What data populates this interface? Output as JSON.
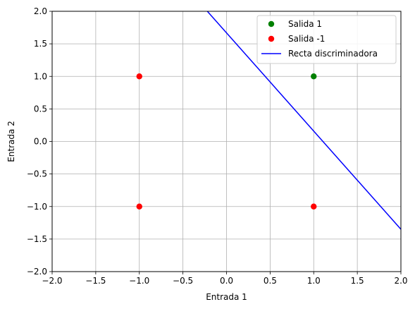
{
  "chart_data": {
    "type": "scatter",
    "xlabel": "Entrada 1",
    "ylabel": "Entrada 2",
    "xlim": [
      -2,
      2
    ],
    "ylim": [
      -2,
      2
    ],
    "xticks": [
      "−2.0",
      "−1.5",
      "−1.0",
      "−0.5",
      "0.0",
      "0.5",
      "1.0",
      "1.5",
      "2.0"
    ],
    "yticks": [
      "−2.0",
      "−1.5",
      "−1.0",
      "−0.5",
      "0.0",
      "0.5",
      "1.0",
      "1.5",
      "2.0"
    ],
    "grid": true,
    "legend_position": "top-right",
    "series": [
      {
        "name": "Salida 1",
        "kind": "points",
        "color": "#008000",
        "x": [
          1
        ],
        "y": [
          1
        ]
      },
      {
        "name": "Salida -1",
        "kind": "points",
        "color": "#ff0000",
        "x": [
          -1,
          -1,
          1
        ],
        "y": [
          1,
          -1,
          -1
        ]
      },
      {
        "name": "Recta discriminadora",
        "kind": "line",
        "color": "#0000ff",
        "x": [
          -0.22,
          2.0
        ],
        "y": [
          2.0,
          -1.35
        ]
      }
    ]
  }
}
